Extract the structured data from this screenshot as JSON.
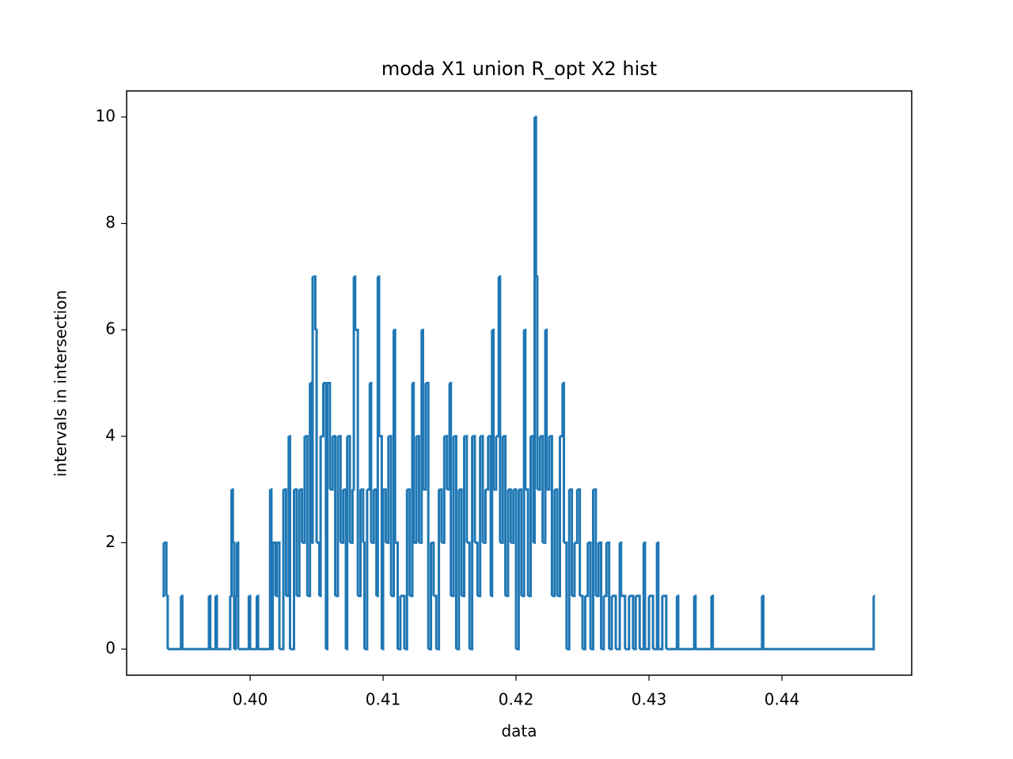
{
  "chart_data": {
    "type": "line",
    "drawstyle": "steps-post",
    "title": "moda X1 union R_opt X2 hist",
    "xlabel": "data",
    "ylabel": "intervals in intersection",
    "xlim": [
      0.39071,
      0.44976
    ],
    "ylim": [
      -0.49,
      10.49
    ],
    "xticks": [
      {
        "value": 0.4,
        "label": "0.40"
      },
      {
        "value": 0.41,
        "label": "0.41"
      },
      {
        "value": 0.42,
        "label": "0.42"
      },
      {
        "value": 0.43,
        "label": "0.43"
      },
      {
        "value": 0.44,
        "label": "0.44"
      }
    ],
    "yticks": [
      0,
      2,
      4,
      6,
      8,
      10
    ],
    "x": [
      0.3934,
      0.3935,
      0.3937,
      0.3938,
      0.3948,
      0.3949,
      0.3969,
      0.397,
      0.3974,
      0.3975,
      0.3985,
      0.3986,
      0.3987,
      0.3988,
      0.3989,
      0.399,
      0.3991,
      0.3999,
      0.4,
      0.4005,
      0.4006,
      0.4015,
      0.4016,
      0.4017,
      0.4019,
      0.402,
      0.4022,
      0.4025,
      0.4027,
      0.4029,
      0.403,
      0.4033,
      0.4035,
      0.4037,
      0.4039,
      0.4041,
      0.4043,
      0.4045,
      0.4046,
      0.4047,
      0.4049,
      0.405,
      0.4052,
      0.4053,
      0.4055,
      0.4057,
      0.4058,
      0.406,
      0.4062,
      0.4064,
      0.4066,
      0.4068,
      0.407,
      0.4072,
      0.4073,
      0.4075,
      0.4077,
      0.4078,
      0.4079,
      0.4081,
      0.4083,
      0.4085,
      0.4086,
      0.4088,
      0.409,
      0.4091,
      0.4093,
      0.4095,
      0.4096,
      0.4097,
      0.4099,
      0.41,
      0.4102,
      0.4104,
      0.4106,
      0.4108,
      0.4109,
      0.4111,
      0.4113,
      0.4116,
      0.4118,
      0.412,
      0.4122,
      0.4123,
      0.4125,
      0.4127,
      0.4129,
      0.413,
      0.4132,
      0.4134,
      0.4136,
      0.4138,
      0.414,
      0.4142,
      0.4144,
      0.4146,
      0.4148,
      0.415,
      0.4151,
      0.4153,
      0.4155,
      0.4157,
      0.4159,
      0.4161,
      0.4163,
      0.4165,
      0.4167,
      0.4169,
      0.4171,
      0.4173,
      0.4175,
      0.4177,
      0.4179,
      0.4181,
      0.4182,
      0.4183,
      0.4185,
      0.4187,
      0.4188,
      0.419,
      0.4192,
      0.4194,
      0.4196,
      0.4198,
      0.42,
      0.4202,
      0.4204,
      0.4206,
      0.4207,
      0.4209,
      0.4211,
      0.4213,
      0.4214,
      0.4215,
      0.4216,
      0.4218,
      0.422,
      0.4222,
      0.4223,
      0.4225,
      0.4227,
      0.4229,
      0.4231,
      0.4233,
      0.4235,
      0.4236,
      0.4238,
      0.424,
      0.4242,
      0.4244,
      0.4246,
      0.4248,
      0.425,
      0.4252,
      0.4254,
      0.4256,
      0.4258,
      0.426,
      0.4262,
      0.4264,
      0.4266,
      0.4268,
      0.427,
      0.4272,
      0.4275,
      0.4278,
      0.4279,
      0.4282,
      0.4285,
      0.4288,
      0.429,
      0.4293,
      0.4296,
      0.4297,
      0.43,
      0.4303,
      0.4306,
      0.4307,
      0.431,
      0.4313,
      0.4321,
      0.4322,
      0.4334,
      0.4335,
      0.4347,
      0.4348,
      0.4385,
      0.4386,
      0.4469,
      0.447
    ],
    "series": [
      {
        "color": "#1f77b4",
        "values": [
          1,
          2,
          1,
          0,
          1,
          0,
          1,
          0,
          1,
          0,
          1,
          3,
          2,
          0,
          1,
          2,
          0,
          1,
          0,
          1,
          0,
          3,
          0,
          2,
          1,
          2,
          0,
          3,
          1,
          4,
          0,
          3,
          1,
          3,
          2,
          4,
          1,
          5,
          2,
          7,
          6,
          2,
          1,
          4,
          5,
          0,
          5,
          3,
          4,
          1,
          4,
          2,
          3,
          0,
          4,
          2,
          3,
          7,
          6,
          1,
          3,
          2,
          0,
          3,
          5,
          2,
          3,
          1,
          7,
          4,
          0,
          3,
          2,
          4,
          1,
          6,
          2,
          0,
          1,
          0,
          3,
          1,
          5,
          2,
          4,
          2,
          6,
          3,
          5,
          0,
          2,
          1,
          0,
          3,
          2,
          4,
          3,
          5,
          1,
          4,
          0,
          3,
          1,
          4,
          2,
          0,
          4,
          2,
          1,
          4,
          2,
          3,
          4,
          1,
          6,
          3,
          4,
          7,
          2,
          4,
          1,
          3,
          2,
          3,
          0,
          3,
          1,
          6,
          3,
          1,
          4,
          2,
          10,
          7,
          3,
          4,
          2,
          6,
          3,
          4,
          1,
          3,
          1,
          4,
          5,
          2,
          0,
          3,
          1,
          2,
          3,
          1,
          0,
          1,
          2,
          0,
          3,
          1,
          2,
          0,
          1,
          2,
          0,
          1,
          0,
          2,
          1,
          0,
          1,
          0,
          1,
          0,
          2,
          0,
          1,
          0,
          2,
          0,
          1,
          0,
          1,
          0,
          1,
          0,
          1,
          0,
          1,
          0,
          1,
          1
        ]
      }
    ]
  }
}
